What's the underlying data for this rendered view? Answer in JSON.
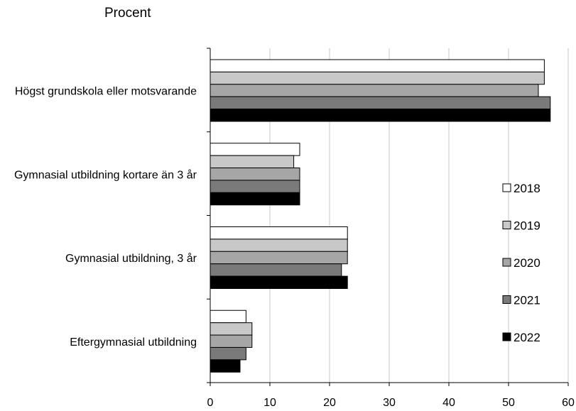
{
  "chart_data": {
    "type": "bar",
    "orientation": "horizontal",
    "unit_label": "Procent",
    "categories": [
      "Högst grundskola eller motsvarande",
      "Gymnasial utbildning kortare än 3 år",
      "Gymnasial utbildning, 3 år",
      "Eftergymnasial utbildning"
    ],
    "series": [
      {
        "name": "2018",
        "color": "#ffffff",
        "values": [
          56,
          15,
          23,
          6
        ]
      },
      {
        "name": "2019",
        "color": "#c8c8c8",
        "values": [
          56,
          14,
          23,
          7
        ]
      },
      {
        "name": "2020",
        "color": "#a6a6a6",
        "values": [
          55,
          15,
          23,
          7
        ]
      },
      {
        "name": "2021",
        "color": "#7a7a7a",
        "values": [
          57,
          15,
          22,
          6
        ]
      },
      {
        "name": "2022",
        "color": "#000000",
        "values": [
          57,
          15,
          23,
          5
        ]
      }
    ],
    "xlim": [
      0,
      60
    ],
    "xticks": [
      0,
      10,
      20,
      30,
      40,
      50,
      60
    ],
    "gridlines": "vertical",
    "legend_position": "right"
  }
}
